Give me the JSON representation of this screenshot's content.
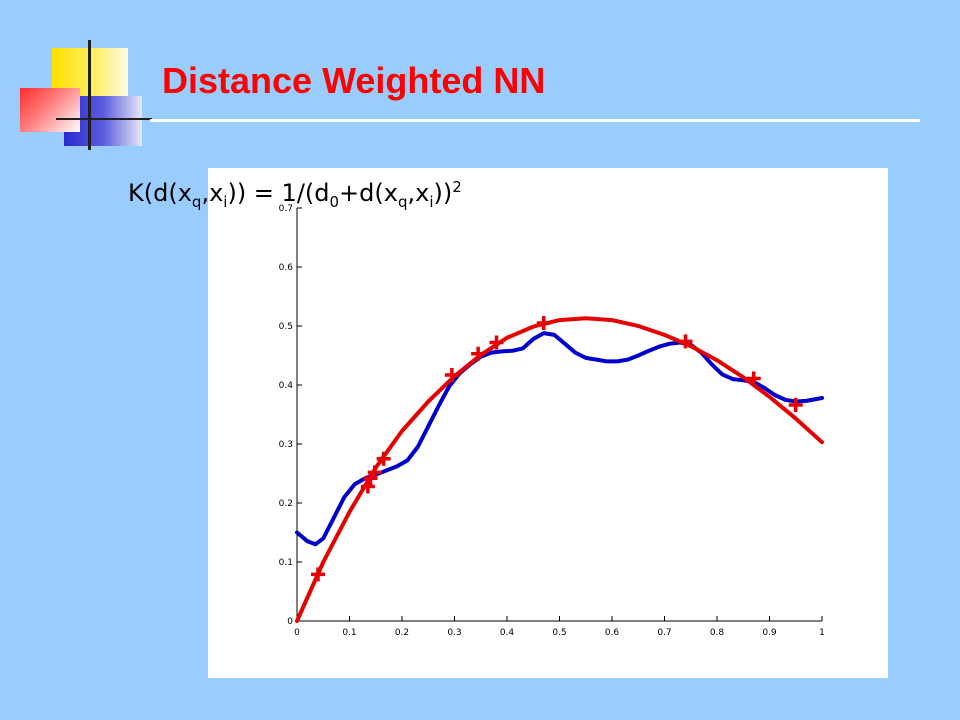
{
  "slide": {
    "title": "Distance Weighted NN",
    "formula": {
      "p1": "K(d(x",
      "s1": "q",
      "p2": ",x",
      "s2": "i",
      "p3": ")) = 1/(d",
      "s3": "0",
      "p4": "+d(x",
      "s4": "q",
      "p5": ",x",
      "s5": "i",
      "p6": "))",
      "exp": "2"
    }
  },
  "colors": {
    "background": "#99ccff",
    "title": "#ff0000",
    "red_curve": "#e60000",
    "blue_curve": "#0000cc"
  },
  "chart_data": {
    "type": "line",
    "xlim": [
      0,
      1
    ],
    "ylim": [
      0,
      0.7
    ],
    "xticks": [
      "0",
      "0.1",
      "0.2",
      "0.3",
      "0.4",
      "0.5",
      "0.6",
      "0.7",
      "0.8",
      "0.9",
      "1"
    ],
    "yticks": [
      "0",
      "0.1",
      "0.2",
      "0.3",
      "0.4",
      "0.5",
      "0.6",
      "0.7"
    ],
    "grid": false,
    "series": [
      {
        "kind": "line",
        "color": "#0000cc",
        "x": [
          0,
          0.02,
          0.035,
          0.05,
          0.07,
          0.09,
          0.11,
          0.13,
          0.15,
          0.17,
          0.19,
          0.21,
          0.23,
          0.25,
          0.27,
          0.29,
          0.31,
          0.33,
          0.35,
          0.37,
          0.39,
          0.41,
          0.43,
          0.45,
          0.47,
          0.49,
          0.51,
          0.53,
          0.55,
          0.57,
          0.59,
          0.61,
          0.63,
          0.65,
          0.67,
          0.69,
          0.71,
          0.73,
          0.75,
          0.77,
          0.79,
          0.81,
          0.83,
          0.85,
          0.87,
          0.89,
          0.91,
          0.93,
          0.95,
          0.97,
          1.0
        ],
        "y": [
          0.15,
          0.135,
          0.13,
          0.14,
          0.175,
          0.21,
          0.232,
          0.242,
          0.248,
          0.255,
          0.262,
          0.272,
          0.295,
          0.33,
          0.365,
          0.398,
          0.42,
          0.435,
          0.448,
          0.455,
          0.457,
          0.458,
          0.462,
          0.478,
          0.488,
          0.485,
          0.47,
          0.455,
          0.446,
          0.443,
          0.44,
          0.44,
          0.443,
          0.45,
          0.458,
          0.465,
          0.47,
          0.472,
          0.468,
          0.455,
          0.435,
          0.418,
          0.41,
          0.408,
          0.405,
          0.395,
          0.383,
          0.375,
          0.372,
          0.373,
          0.378
        ]
      },
      {
        "kind": "line",
        "color": "#e60000",
        "x": [
          0,
          0.05,
          0.1,
          0.15,
          0.2,
          0.25,
          0.3,
          0.35,
          0.4,
          0.45,
          0.5,
          0.55,
          0.6,
          0.65,
          0.7,
          0.75,
          0.8,
          0.85,
          0.9,
          0.95,
          1.0
        ],
        "y": [
          0.0,
          0.1,
          0.185,
          0.26,
          0.322,
          0.372,
          0.415,
          0.451,
          0.48,
          0.499,
          0.51,
          0.513,
          0.51,
          0.5,
          0.485,
          0.466,
          0.442,
          0.413,
          0.38,
          0.343,
          0.303
        ]
      },
      {
        "kind": "scatter",
        "marker": "+",
        "color": "#e60000",
        "x": [
          0.04,
          0.135,
          0.14,
          0.148,
          0.165,
          0.295,
          0.345,
          0.38,
          0.47,
          0.74,
          0.87,
          0.95
        ],
        "y": [
          0.079,
          0.228,
          0.242,
          0.252,
          0.275,
          0.417,
          0.453,
          0.472,
          0.505,
          0.474,
          0.411,
          0.366
        ]
      }
    ]
  }
}
